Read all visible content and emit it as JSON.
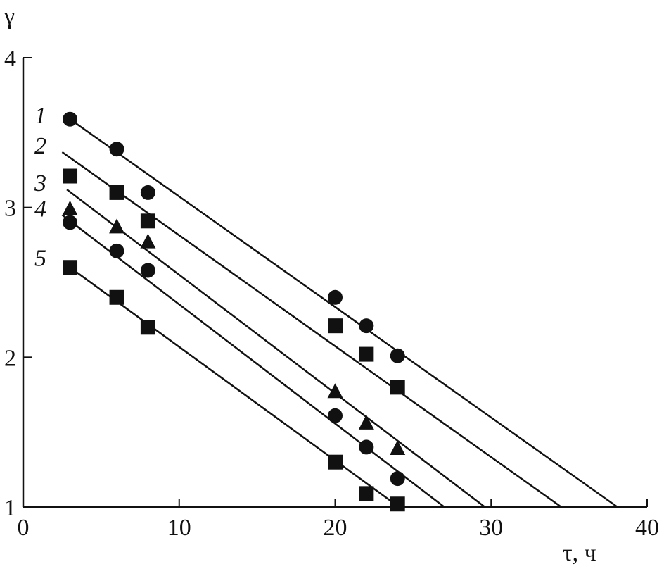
{
  "chart_data": {
    "type": "scatter",
    "title": "",
    "xlabel": "τ, ч",
    "ylabel": "γ",
    "xlim": [
      0,
      40
    ],
    "ylim": [
      1,
      4
    ],
    "xticks": [
      0,
      10,
      20,
      30,
      40
    ],
    "yticks": [
      1,
      2,
      3,
      4
    ],
    "grid": false,
    "color": "#111111",
    "series": [
      {
        "name": "1",
        "marker": "circle",
        "x": [
          3,
          6,
          8,
          20,
          22,
          24
        ],
        "y": [
          3.59,
          3.39,
          3.1,
          2.4,
          2.21,
          2.01
        ],
        "fit_line": {
          "x": [
            3,
            38.1
          ],
          "y": [
            3.59,
            1
          ]
        }
      },
      {
        "name": "2",
        "marker": "square",
        "x": [
          3,
          6,
          8,
          20,
          22,
          24
        ],
        "y": [
          3.21,
          3.1,
          2.91,
          2.21,
          2.02,
          1.8
        ],
        "fit_line": {
          "x": [
            2.5,
            34.5
          ],
          "y": [
            3.37,
            1
          ]
        }
      },
      {
        "name": "3",
        "marker": "triangle",
        "x": [
          3,
          6,
          8,
          20,
          22,
          24
        ],
        "y": [
          2.99,
          2.87,
          2.77,
          1.77,
          1.56,
          1.39
        ],
        "fit_line": {
          "x": [
            2.8,
            29.6
          ],
          "y": [
            3.12,
            1
          ]
        }
      },
      {
        "name": "4",
        "marker": "circle",
        "x": [
          3,
          6,
          8,
          20,
          22,
          24
        ],
        "y": [
          2.9,
          2.71,
          2.58,
          1.61,
          1.4,
          1.19
        ],
        "fit_line": {
          "x": [
            2.5,
            27.0
          ],
          "y": [
            2.95,
            1
          ]
        }
      },
      {
        "name": "5",
        "marker": "square",
        "x": [
          3,
          6,
          8,
          20,
          22,
          24
        ],
        "y": [
          2.6,
          2.4,
          2.2,
          1.3,
          1.09,
          1.02
        ],
        "fit_line": {
          "x": [
            3,
            24.1
          ],
          "y": [
            2.6,
            1
          ]
        }
      }
    ]
  }
}
